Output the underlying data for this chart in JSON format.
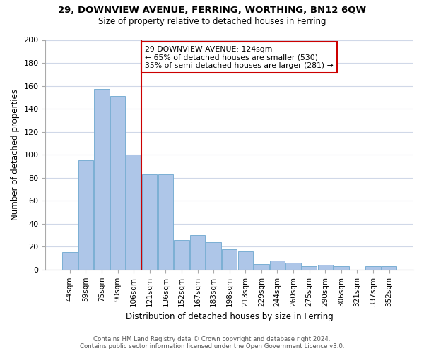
{
  "title1": "29, DOWNVIEW AVENUE, FERRING, WORTHING, BN12 6QW",
  "title2": "Size of property relative to detached houses in Ferring",
  "xlabel": "Distribution of detached houses by size in Ferring",
  "ylabel": "Number of detached properties",
  "categories": [
    "44sqm",
    "59sqm",
    "75sqm",
    "90sqm",
    "106sqm",
    "121sqm",
    "136sqm",
    "152sqm",
    "167sqm",
    "183sqm",
    "198sqm",
    "213sqm",
    "229sqm",
    "244sqm",
    "260sqm",
    "275sqm",
    "290sqm",
    "306sqm",
    "321sqm",
    "337sqm",
    "352sqm"
  ],
  "values": [
    15,
    95,
    157,
    151,
    100,
    83,
    83,
    26,
    30,
    24,
    18,
    16,
    5,
    8,
    6,
    3,
    4,
    3,
    0,
    3,
    3
  ],
  "bar_color": "#aec6e8",
  "bar_edge_color": "#7bafd4",
  "vline_x": 4.5,
  "vline_color": "#cc0000",
  "ylim": [
    0,
    200
  ],
  "yticks": [
    0,
    20,
    40,
    60,
    80,
    100,
    120,
    140,
    160,
    180,
    200
  ],
  "annotation_title": "29 DOWNVIEW AVENUE: 124sqm",
  "annotation_line1": "← 65% of detached houses are smaller (530)",
  "annotation_line2": "35% of semi-detached houses are larger (281) →",
  "annotation_box_color": "#ffffff",
  "annotation_box_edge": "#cc0000",
  "footer1": "Contains HM Land Registry data © Crown copyright and database right 2024.",
  "footer2": "Contains public sector information licensed under the Open Government Licence v3.0.",
  "background_color": "#ffffff",
  "grid_color": "#d0d8e8"
}
